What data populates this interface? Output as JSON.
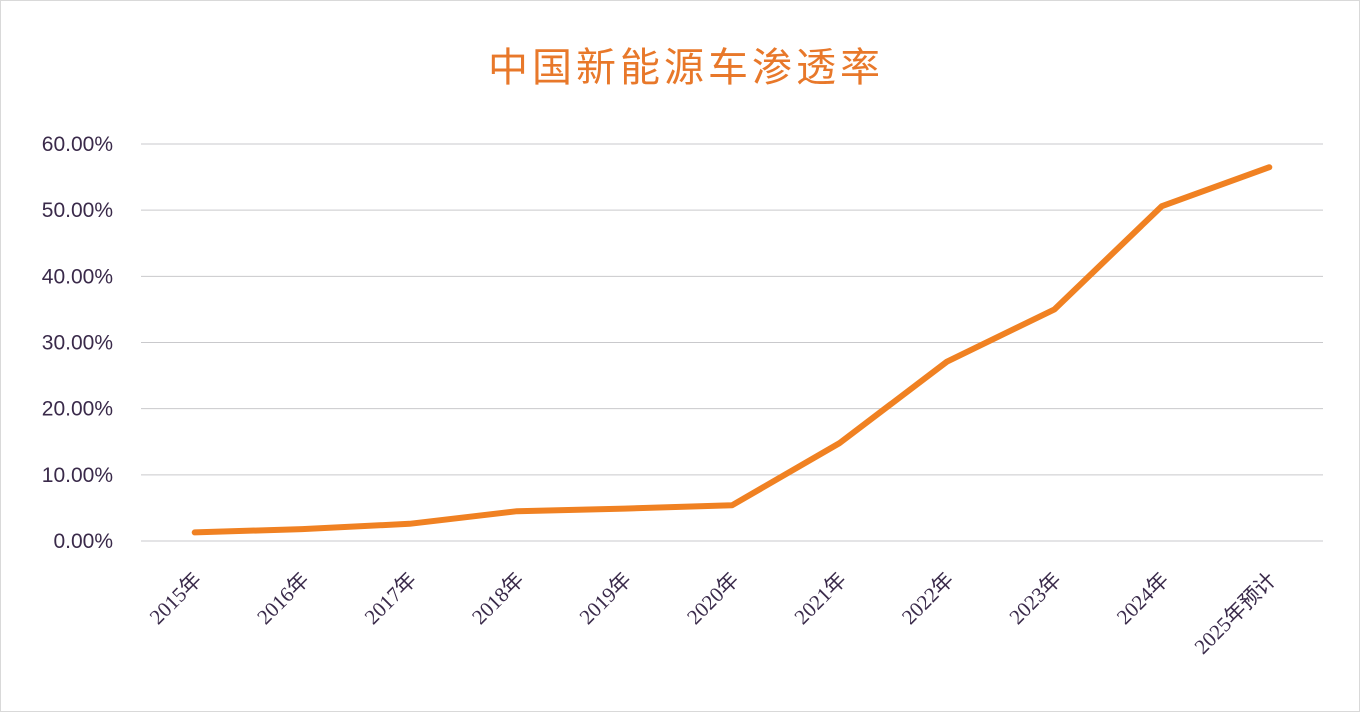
{
  "chart_data": {
    "type": "line",
    "title": "中国新能源车渗透率",
    "xlabel": "",
    "ylabel": "",
    "categories": [
      "2015年",
      "2016年",
      "2017年",
      "2018年",
      "2019年",
      "2020年",
      "2021年",
      "2022年",
      "2023年",
      "2024年",
      "2025年预计"
    ],
    "series": [
      {
        "values": [
          1.3,
          1.8,
          2.6,
          4.5,
          4.9,
          5.4,
          14.8,
          27.1,
          35.0,
          50.6,
          56.5
        ]
      }
    ],
    "value_format": "percent_2dp",
    "yticks": [
      "0.00%",
      "10.00%",
      "20.00%",
      "30.00%",
      "40.00%",
      "50.00%",
      "60.00%"
    ],
    "ylim": [
      0,
      60
    ],
    "grid": true,
    "legend": "none",
    "colors": {
      "line": "#f08122",
      "title": "#e8782a",
      "grid": "#c9c9cc",
      "text": "#3a2a4a"
    }
  }
}
